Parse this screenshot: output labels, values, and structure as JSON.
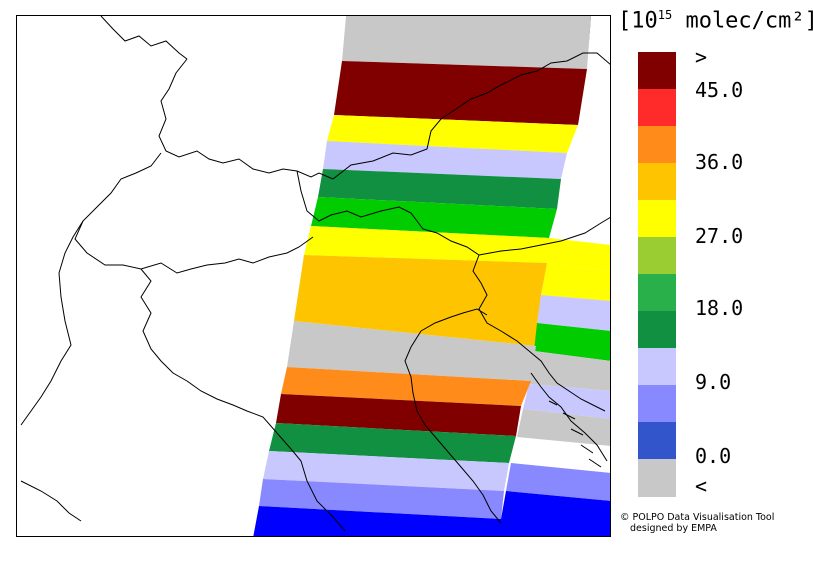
{
  "legend": {
    "unit_base": "[10",
    "unit_exp": "15",
    "unit_rest": " molec/cm²]",
    "labels": [
      ">",
      "45.0",
      "36.0",
      "27.0",
      "18.0",
      "9.0",
      "0.0",
      "<"
    ],
    "colors": [
      "#800000",
      "#ff2a2a",
      "#ff8c1a",
      "#ffc400",
      "#ffff00",
      "#9acd32",
      "#2ab04a",
      "#109040",
      "#c8c8ff",
      "#8888ff",
      "#3355cc",
      "#c8c8c8"
    ]
  },
  "credit": {
    "line1": "© POLPO Data Visualisation Tool",
    "line2": "designed by EMPA"
  }
}
